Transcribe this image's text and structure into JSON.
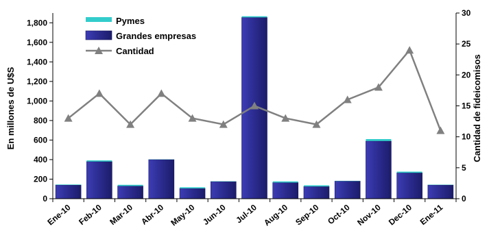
{
  "chart_data": {
    "type": "bar",
    "stacked": true,
    "categories": [
      "Ene-10",
      "Feb-10",
      "Mar-10",
      "Abr-10",
      "May-10",
      "Jun-10",
      "Jul-10",
      "Aug-10",
      "Sep-10",
      "Oct-10",
      "Nov-10",
      "Dec-10",
      "Ene-11"
    ],
    "series": [
      {
        "name": "Grandes empresas",
        "axis": "left",
        "kind": "bar",
        "color": "#2b2b8f",
        "values": [
          140,
          380,
          130,
          400,
          105,
          175,
          1855,
          165,
          125,
          180,
          590,
          265,
          140
        ]
      },
      {
        "name": "Pymes",
        "axis": "left",
        "kind": "bar",
        "color": "#33cccc",
        "values": [
          5,
          12,
          12,
          2,
          12,
          3,
          12,
          12,
          12,
          3,
          20,
          12,
          3
        ]
      },
      {
        "name": "Cantidad",
        "axis": "right",
        "kind": "line",
        "color": "#808080",
        "marker": "triangle",
        "values": [
          13,
          17,
          12,
          17,
          13,
          12,
          15,
          13,
          12,
          16,
          18,
          24,
          11
        ]
      }
    ],
    "ylabel": "En millones de U$S",
    "y2label": "Cantidad de fideicomisos",
    "ylim": [
      0,
      1900
    ],
    "yticks": [
      0,
      200,
      400,
      600,
      800,
      1000,
      1200,
      1400,
      1600,
      1800
    ],
    "ytick_labels": [
      "0",
      "200",
      "400",
      "600",
      "800",
      "1,000",
      "1,200",
      "1,400",
      "1,600",
      "1,800"
    ],
    "y2lim": [
      0,
      30
    ],
    "y2ticks": [
      0,
      5,
      10,
      15,
      20,
      25,
      30
    ],
    "legend_position": "top-left",
    "legend_order": [
      "Pymes",
      "Grandes empresas",
      "Cantidad"
    ],
    "grid": false
  }
}
